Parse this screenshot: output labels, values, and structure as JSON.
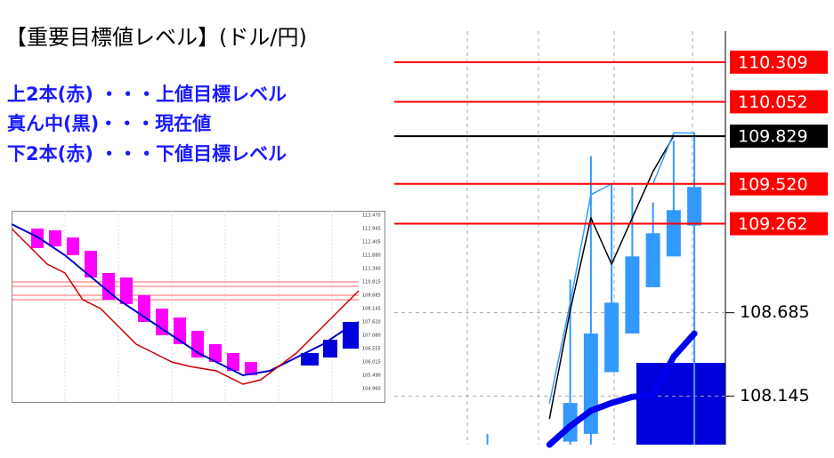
{
  "header": {
    "title": "【重要目標値レベル】(ドル/円)"
  },
  "notes": [
    "上2本(赤) ・・・上値目標レベル",
    "真ん中(黒)・・・現在値",
    "下2本(赤) ・・・下値目標レベル"
  ],
  "thumbnail": {
    "yticks": [
      "113.470",
      "112.945",
      "112.405",
      "111.880",
      "111.340",
      "110.815",
      "108.685",
      "108.145",
      "107.620",
      "107.080",
      "106.555",
      "106.015",
      "105.490",
      "104.960"
    ]
  },
  "chart_data": {
    "type": "candlestick",
    "categories": [
      null,
      null,
      null,
      null,
      null,
      null,
      null,
      null,
      null,
      null,
      null,
      null,
      null,
      null,
      null,
      null
    ],
    "candle_color": "#3399ff",
    "open": [
      null,
      null,
      null,
      null,
      null,
      null,
      null,
      null,
      107.85,
      107.9,
      108.3,
      108.55,
      108.85,
      109.05,
      109.25,
      null
    ],
    "high": [
      null,
      null,
      null,
      null,
      107.9,
      null,
      null,
      null,
      108.9,
      109.7,
      109.52,
      109.5,
      109.4,
      109.8,
      109.85,
      null
    ],
    "low": [
      null,
      null,
      null,
      null,
      107.83,
      null,
      null,
      null,
      107.83,
      107.83,
      108.3,
      108.55,
      108.85,
      109.05,
      107.83,
      null
    ],
    "close": [
      null,
      null,
      null,
      null,
      null,
      null,
      null,
      null,
      108.1,
      108.55,
      108.75,
      109.05,
      109.2,
      109.35,
      109.5,
      null
    ],
    "lines": [
      {
        "color": "#000000",
        "width": 1.5,
        "values": [
          null,
          null,
          null,
          null,
          null,
          null,
          null,
          108.0,
          108.7,
          109.3,
          109.0,
          109.3,
          109.6,
          109.83,
          null,
          null
        ]
      },
      {
        "color": "#3399ff",
        "width": 1.5,
        "values": [
          null,
          null,
          null,
          null,
          null,
          null,
          null,
          108.1,
          108.75,
          109.45,
          109.52,
          109.52,
          109.52,
          109.85,
          109.85,
          null
        ]
      },
      {
        "color": "#0000ee",
        "width": 7,
        "values": [
          null,
          null,
          null,
          null,
          null,
          null,
          null,
          107.83,
          107.95,
          108.05,
          108.1,
          108.14,
          108.15,
          108.4,
          108.55,
          null
        ]
      }
    ],
    "levels": [
      {
        "value": 110.309,
        "label": "110.309",
        "color": "#ff0000"
      },
      {
        "value": 110.052,
        "label": "110.052",
        "color": "#ff0000"
      },
      {
        "value": 109.829,
        "label": "109.829",
        "color": "#000000"
      },
      {
        "value": 109.52,
        "label": "109.520",
        "color": "#ff0000"
      },
      {
        "value": 109.262,
        "label": "109.262",
        "color": "#ff0000"
      }
    ],
    "ylim": [
      107.83,
      110.51
    ],
    "yticks": [
      {
        "value": 108.685,
        "label": "108.685"
      },
      {
        "value": 108.145,
        "label": "108.145"
      }
    ],
    "grid": true
  }
}
